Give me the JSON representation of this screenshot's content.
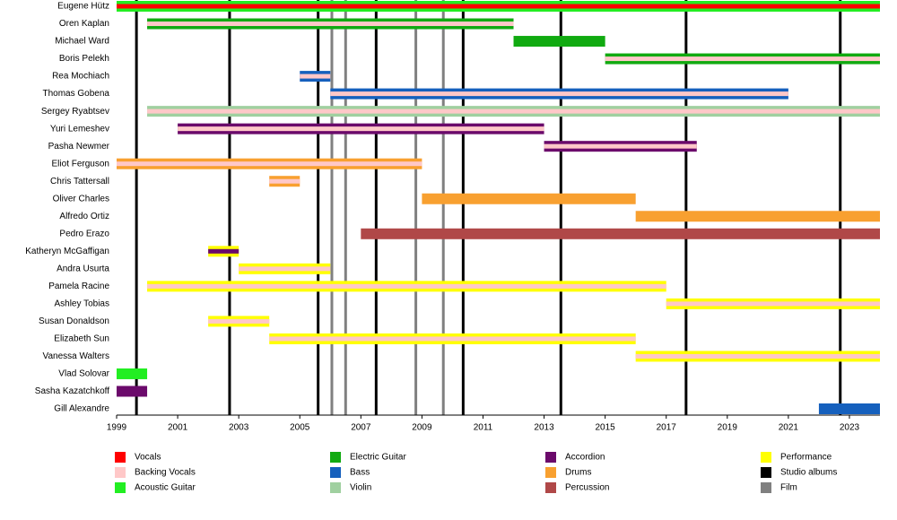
{
  "chart_data": {
    "type": "timeline",
    "xlim": [
      1999,
      2024
    ],
    "xticks": [
      1999,
      2001,
      2003,
      2005,
      2007,
      2009,
      2011,
      2013,
      2015,
      2017,
      2019,
      2021,
      2023
    ],
    "roles": [
      {
        "name": "Vocals",
        "color": "#ff0000"
      },
      {
        "name": "Backing Vocals",
        "color": "#ffc8c8"
      },
      {
        "name": "Acoustic Guitar",
        "color": "#22ee22"
      },
      {
        "name": "Electric Guitar",
        "color": "#11aa11"
      },
      {
        "name": "Bass",
        "color": "#1560bd"
      },
      {
        "name": "Violin",
        "color": "#a0d0a0"
      },
      {
        "name": "Accordion",
        "color": "#6b0a6b"
      },
      {
        "name": "Drums",
        "color": "#f8a030"
      },
      {
        "name": "Percussion",
        "color": "#b04848"
      },
      {
        "name": "Performance",
        "color": "#ffff00"
      },
      {
        "name": "Studio albums",
        "color": "#000000"
      },
      {
        "name": "Film",
        "color": "#808080"
      }
    ],
    "events": [
      {
        "role": "Studio albums",
        "x": [
          1999.65,
          2002.7,
          2005.6,
          2007.5,
          2010.35,
          2013.55,
          2017.65,
          2022.7
        ]
      },
      {
        "role": "Film",
        "x": [
          2006.05,
          2006.5,
          2008.8,
          2009.7
        ]
      }
    ],
    "members": [
      {
        "name": "Eugene Hütz",
        "bars": [
          {
            "start": 1999,
            "end": 2024,
            "role": "Acoustic Guitar",
            "stripe": "Vocals"
          }
        ]
      },
      {
        "name": "Oren Kaplan",
        "bars": [
          {
            "start": 2000,
            "end": 2012,
            "role": "Electric Guitar",
            "stripe": "Backing Vocals"
          }
        ]
      },
      {
        "name": "Michael Ward",
        "bars": [
          {
            "start": 2012,
            "end": 2015,
            "role": "Electric Guitar"
          }
        ]
      },
      {
        "name": "Boris Pelekh",
        "bars": [
          {
            "start": 2015,
            "end": 2024,
            "role": "Electric Guitar",
            "stripe": "Backing Vocals"
          }
        ]
      },
      {
        "name": "Rea Mochiach",
        "bars": [
          {
            "start": 2005,
            "end": 2006,
            "role": "Bass",
            "stripe": "Backing Vocals"
          }
        ]
      },
      {
        "name": "Thomas Gobena",
        "bars": [
          {
            "start": 2006,
            "end": 2021,
            "role": "Bass",
            "stripe": "Backing Vocals"
          }
        ]
      },
      {
        "name": "Sergey Ryabtsev",
        "bars": [
          {
            "start": 2000,
            "end": 2024,
            "role": "Violin",
            "stripe": "Backing Vocals"
          }
        ]
      },
      {
        "name": "Yuri Lemeshev",
        "bars": [
          {
            "start": 2001,
            "end": 2013,
            "role": "Accordion",
            "stripe": "Backing Vocals"
          }
        ]
      },
      {
        "name": "Pasha Newmer",
        "bars": [
          {
            "start": 2013,
            "end": 2018,
            "role": "Accordion",
            "stripe": "Backing Vocals"
          }
        ]
      },
      {
        "name": "Eliot Ferguson",
        "bars": [
          {
            "start": 1999,
            "end": 2009,
            "role": "Drums",
            "stripe": "Backing Vocals"
          }
        ]
      },
      {
        "name": "Chris Tattersall",
        "bars": [
          {
            "start": 2004,
            "end": 2005,
            "role": "Drums",
            "stripe": "Backing Vocals"
          }
        ]
      },
      {
        "name": "Oliver Charles",
        "bars": [
          {
            "start": 2009,
            "end": 2016,
            "role": "Drums"
          }
        ]
      },
      {
        "name": "Alfredo Ortiz",
        "bars": [
          {
            "start": 2016,
            "end": 2024,
            "role": "Drums"
          }
        ]
      },
      {
        "name": "Pedro Erazo",
        "bars": [
          {
            "start": 2007,
            "end": 2024,
            "role": "Percussion"
          }
        ]
      },
      {
        "name": "Katheryn McGaffigan",
        "bars": [
          {
            "start": 2002,
            "end": 2003,
            "role": "Performance",
            "stripe": "Accordion"
          }
        ]
      },
      {
        "name": "Andra Usurta",
        "bars": [
          {
            "start": 2003,
            "end": 2006,
            "role": "Performance",
            "stripe": "Backing Vocals"
          }
        ]
      },
      {
        "name": "Pamela Racine",
        "bars": [
          {
            "start": 2000,
            "end": 2017,
            "role": "Performance",
            "stripe": "Backing Vocals"
          }
        ]
      },
      {
        "name": "Ashley Tobias",
        "bars": [
          {
            "start": 2017,
            "end": 2024,
            "role": "Performance",
            "stripe": "Backing Vocals"
          }
        ]
      },
      {
        "name": "Susan Donaldson",
        "bars": [
          {
            "start": 2002,
            "end": 2004,
            "role": "Performance",
            "stripe": "Backing Vocals"
          }
        ]
      },
      {
        "name": "Elizabeth Sun",
        "bars": [
          {
            "start": 2004,
            "end": 2016,
            "role": "Performance",
            "stripe": "Backing Vocals"
          }
        ]
      },
      {
        "name": "Vanessa Walters",
        "bars": [
          {
            "start": 2016,
            "end": 2024,
            "role": "Performance",
            "stripe": "Backing Vocals"
          }
        ]
      },
      {
        "name": "Vlad Solovar",
        "bars": [
          {
            "start": 1999,
            "end": 2000,
            "role": "Acoustic Guitar"
          }
        ]
      },
      {
        "name": "Sasha Kazatchkoff",
        "bars": [
          {
            "start": 1999,
            "end": 2000,
            "role": "Accordion"
          }
        ]
      },
      {
        "name": "Gill Alexandre",
        "bars": [
          {
            "start": 2022,
            "end": 2024,
            "role": "Bass"
          }
        ]
      }
    ]
  }
}
